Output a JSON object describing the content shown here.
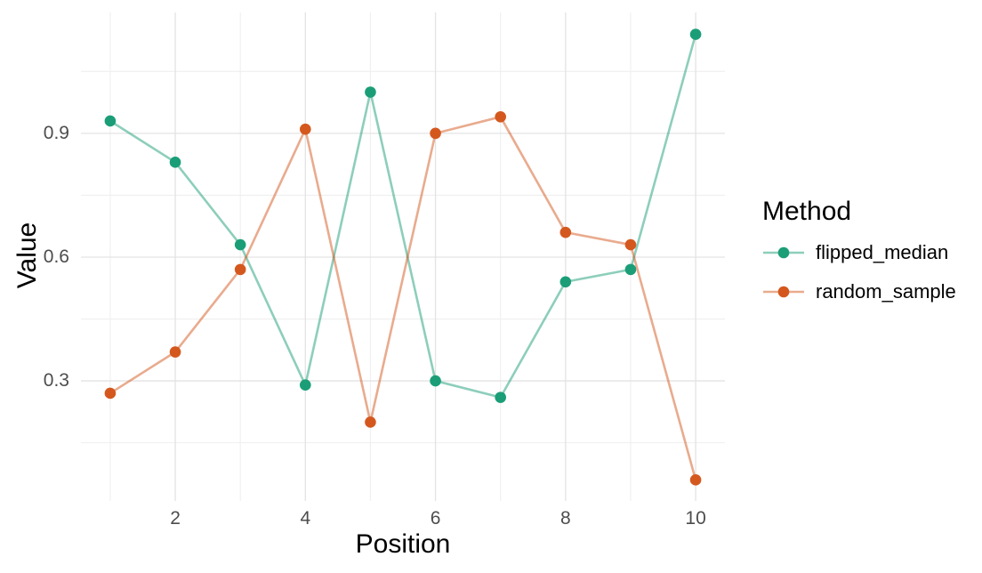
{
  "figure": {
    "background": "#ffffff"
  },
  "legend": {
    "title": "Method",
    "items": [
      {
        "label": "flipped_median",
        "color": "#1b9e77"
      },
      {
        "label": "random_sample",
        "color": "#d4581e"
      }
    ]
  },
  "chart_data": {
    "type": "line",
    "title": "",
    "xlabel": "Position",
    "ylabel": "Value",
    "x": [
      1,
      2,
      3,
      4,
      5,
      6,
      7,
      8,
      9,
      10
    ],
    "series": [
      {
        "name": "flipped_median",
        "color": "#1b9e77",
        "values": [
          0.93,
          0.83,
          0.63,
          0.29,
          1.0,
          0.3,
          0.26,
          0.54,
          0.57,
          1.14
        ]
      },
      {
        "name": "random_sample",
        "color": "#d4581e",
        "values": [
          0.27,
          0.37,
          0.57,
          0.91,
          0.2,
          0.9,
          0.94,
          0.66,
          0.63,
          0.06
        ]
      }
    ],
    "xlim": [
      0.55,
      10.45
    ],
    "ylim": [
      0.009,
      1.193
    ],
    "x_ticks_major": [
      2,
      4,
      6,
      8,
      10
    ],
    "x_tick_labels": [
      "2",
      "4",
      "6",
      "8",
      "10"
    ],
    "x_ticks_minor": [
      1,
      3,
      5,
      7,
      9
    ],
    "y_ticks_major": [
      0.3,
      0.6,
      0.9
    ],
    "y_tick_labels": [
      "0.3",
      "0.6",
      "0.9"
    ],
    "y_ticks_minor": [
      0.15,
      0.45,
      0.75,
      1.05
    ],
    "grid": true,
    "legend_position": "right",
    "style": {
      "line_opacity": 0.5,
      "line_width": 2.6,
      "point_radius": 6.3,
      "grid_major_color": "#e3e3e3",
      "grid_minor_color": "#efefef",
      "tick_label_color": "#4d4d4d",
      "axis_title_color": "#000000"
    }
  }
}
